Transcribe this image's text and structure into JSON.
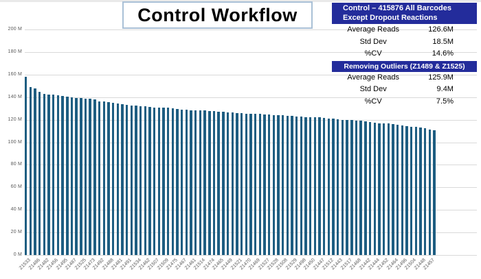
{
  "title": "Control Workflow",
  "stats_panel": {
    "section1": {
      "header_line1": "Control  – 415876 All Barcodes",
      "header_line2": "Except Dropout Reactions",
      "rows": [
        {
          "label": "Average Reads",
          "value": "126.6M"
        },
        {
          "label": "Std Dev",
          "value": "18.5M"
        },
        {
          "label": "%CV",
          "value": "14.6%"
        }
      ]
    },
    "section2": {
      "header": "Removing Outliers (Z1489 & Z1525)",
      "rows": [
        {
          "label": "Average Reads",
          "value": "125.9M"
        },
        {
          "label": "Std Dev",
          "value": "9.4M"
        },
        {
          "label": "%CV",
          "value": "7.5%"
        }
      ]
    }
  },
  "colors": {
    "bar": "#1d5d81",
    "header_bg": "#232c9b",
    "gridline": "#d9d9d9",
    "axis_text": "#595959",
    "title_border": "#a9c0d6"
  },
  "chart_data": {
    "type": "bar",
    "title": "Control Workflow",
    "xlabel": "",
    "ylabel": "",
    "ylim": [
      0,
      200
    ],
    "y_unit": "M",
    "grid": true,
    "legend": false,
    "y_tick_values": [
      0,
      20,
      40,
      60,
      80,
      100,
      120,
      140,
      160,
      180,
      200
    ],
    "y_tick_labels": [
      "0 M",
      "20 M",
      "40 M",
      "60 M",
      "80 M",
      "100 M",
      "120 M",
      "140 M",
      "160 M",
      "180 M",
      "200 M"
    ],
    "label_every_nth_bar": 2,
    "x_tick_labels": [
      "Z1533",
      "Z1486",
      "Z1482",
      "Z1456",
      "Z1495",
      "Z1487",
      "Z1525",
      "Z1473",
      "Z1492",
      "Z1488",
      "Z1481",
      "Z1491",
      "Z1534",
      "Z1462",
      "Z1507",
      "Z1509",
      "Z1475",
      "Z1467",
      "Z1461",
      "Z1514",
      "Z1474",
      "Z1465",
      "Z1449",
      "Z1521",
      "Z1470",
      "Z1469",
      "Z1527",
      "Z1528",
      "Z1508",
      "Z1529",
      "Z1498",
      "Z1450",
      "Z1447",
      "Z1512",
      "Z1443",
      "Z1517",
      "Z1468",
      "Z1442",
      "Z1444",
      "Z1452",
      "Z1464",
      "Z1496",
      "Z1504",
      "Z1448",
      "Z1457"
    ],
    "values": [
      158,
      149,
      147.5,
      144.5,
      143,
      142.5,
      142,
      141.5,
      141,
      140.5,
      140,
      139.5,
      139,
      138.5,
      138.5,
      138,
      136.5,
      136,
      135.5,
      135,
      134.5,
      134,
      133,
      132.5,
      132.5,
      132,
      132,
      131.5,
      131,
      131,
      130.5,
      130.5,
      130,
      129.5,
      129,
      129,
      128.5,
      128.5,
      128,
      128,
      127.5,
      127.5,
      127,
      127,
      126.5,
      126.5,
      126,
      126,
      125.5,
      125.5,
      125,
      125,
      124.5,
      124.5,
      124,
      124,
      124,
      123.5,
      123.5,
      123,
      123,
      122.5,
      122.5,
      122,
      122,
      121.5,
      121,
      121,
      120.5,
      120,
      120,
      119.5,
      119,
      119,
      118.5,
      118,
      117.5,
      117,
      117,
      116.5,
      116,
      115.5,
      115,
      114.5,
      114,
      113.5,
      113,
      112.5,
      111.5,
      110.5
    ]
  }
}
